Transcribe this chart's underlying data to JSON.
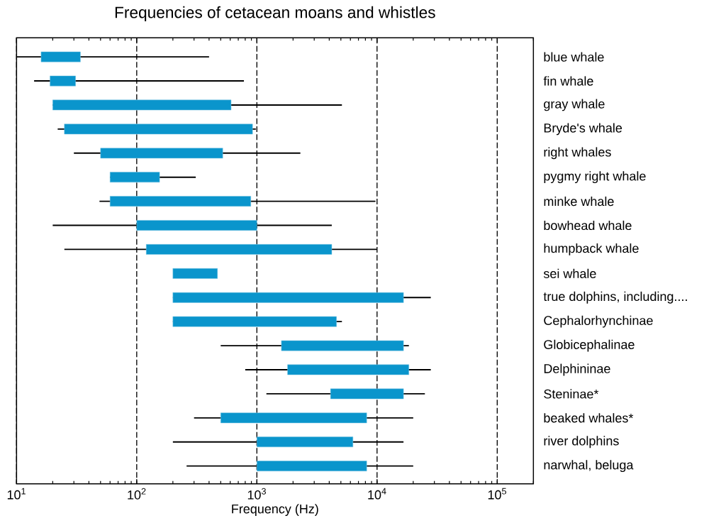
{
  "chart_data": {
    "type": "bar",
    "orientation": "horizontal",
    "title": "Frequencies of cetacean moans and whistles",
    "xlabel": "Frequency (Hz)",
    "categories": [
      "blue whale",
      "fin whale",
      "gray whale",
      "Bryde's whale",
      "right whales",
      "pygmy right whale",
      "minke whale",
      "bowhead whale",
      "humpback whale",
      "sei whale",
      "true dolphins, including....",
      "Cephalorhynchinae",
      "Globicephalinae",
      "Delphininae",
      "Steninae*",
      "beaked whales*",
      "river dolphins",
      "narwhal, beluga"
    ],
    "base": [
      16,
      19,
      20,
      25,
      50,
      60,
      60,
      100,
      120,
      200,
      200,
      200,
      1600,
      1800,
      4100,
      500,
      1000,
      1000
    ],
    "values": [
      18,
      12,
      590,
      895,
      470,
      95,
      830,
      900,
      4080,
      270,
      16400,
      4400,
      15000,
      16600,
      12500,
      7700,
      5300,
      7200
    ],
    "errors": [
      [
        10,
        400
      ],
      [
        14,
        780
      ],
      [
        20,
        5100
      ],
      [
        22,
        980
      ],
      [
        30,
        2300
      ],
      [
        60,
        310
      ],
      [
        49,
        9700
      ],
      [
        20,
        4200
      ],
      [
        25,
        10000
      ],
      null,
      [
        200,
        28000
      ],
      [
        200,
        5100
      ],
      [
        500,
        18400
      ],
      [
        800,
        28000
      ],
      [
        1200,
        25000
      ],
      [
        300,
        20000
      ],
      [
        200,
        16600
      ],
      [
        260,
        20000
      ]
    ],
    "color": "#0a95cc",
    "log": "x",
    "xlim": [
      10,
      200000
    ],
    "xticks": [
      {
        "value": 10,
        "label": "10$^{1}$"
      },
      {
        "value": 100,
        "label": "10$^{2}$"
      },
      {
        "value": 1000,
        "label": "10$^{3}$"
      },
      {
        "value": 10000,
        "label": "10$^{4}$"
      },
      {
        "value": 100000,
        "label": "10$^{5}$"
      }
    ],
    "grid": "x"
  }
}
